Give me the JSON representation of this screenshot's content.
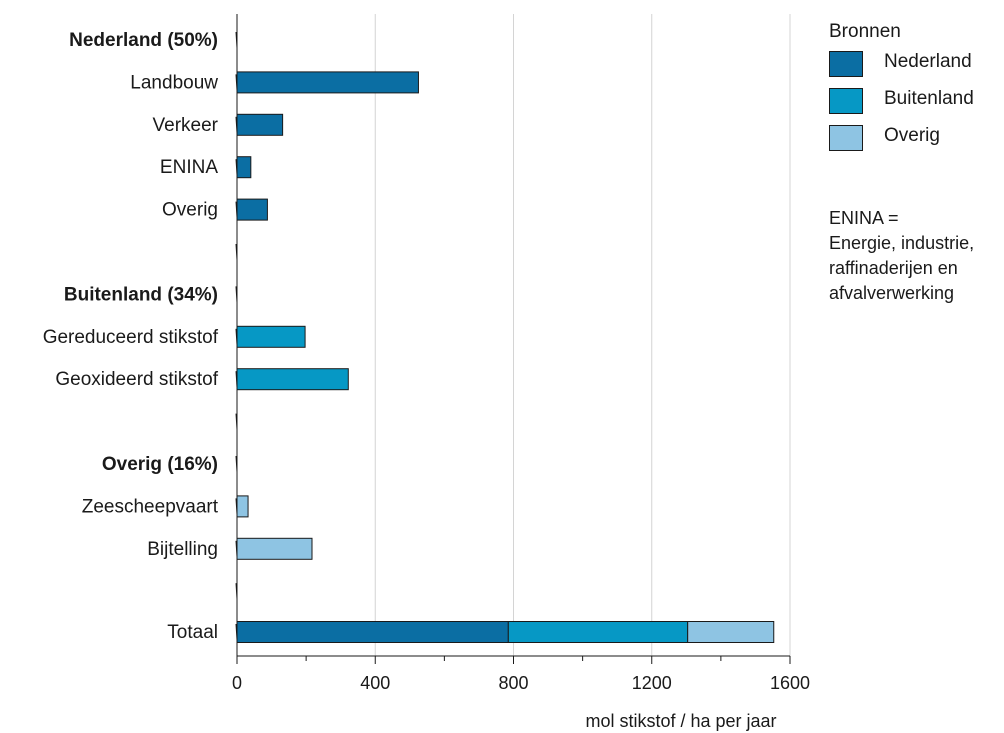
{
  "chart_data": {
    "type": "bar",
    "orientation": "horizontal",
    "xlabel": "mol stikstof / ha per jaar",
    "xlim": [
      0,
      1600
    ],
    "xticks": [
      0,
      400,
      800,
      1200,
      1600
    ],
    "grid": true,
    "rows": [
      {
        "label": "Nederland (50%)",
        "bold": true
      },
      {
        "label": "Landbouw",
        "value": 525,
        "source": "Nederland"
      },
      {
        "label": "Verkeer",
        "value": 132,
        "source": "Nederland"
      },
      {
        "label": "ENINA",
        "value": 40,
        "source": "Nederland"
      },
      {
        "label": "Overig",
        "value": 88,
        "source": "Nederland"
      },
      {
        "label": ""
      },
      {
        "label": "Buitenland (34%)",
        "bold": true
      },
      {
        "label": "Gereduceerd stikstof",
        "value": 197,
        "source": "Buitenland"
      },
      {
        "label": "Geoxideerd stikstof",
        "value": 322,
        "source": "Buitenland"
      },
      {
        "label": ""
      },
      {
        "label": "Overig (16%)",
        "bold": true
      },
      {
        "label": "Zeescheepvaart",
        "value": 32,
        "source": "Overig"
      },
      {
        "label": "Bijtelling",
        "value": 217,
        "source": "Overig"
      },
      {
        "label": ""
      },
      {
        "label": "Totaal",
        "stacked": [
          {
            "source": "Nederland",
            "value": 785
          },
          {
            "source": "Buitenland",
            "value": 519
          },
          {
            "source": "Overig",
            "value": 249
          }
        ]
      }
    ]
  },
  "legend": {
    "title": "Bronnen",
    "items": [
      {
        "name": "Nederland",
        "color": "#0b6ea3"
      },
      {
        "name": "Buitenland",
        "color": "#0698c5"
      },
      {
        "name": "Overig",
        "color": "#8ec4e3"
      }
    ]
  },
  "note": {
    "lines": [
      "ENINA =",
      "Energie, industrie,",
      "raffinaderijen en",
      "afvalverwerking"
    ]
  }
}
